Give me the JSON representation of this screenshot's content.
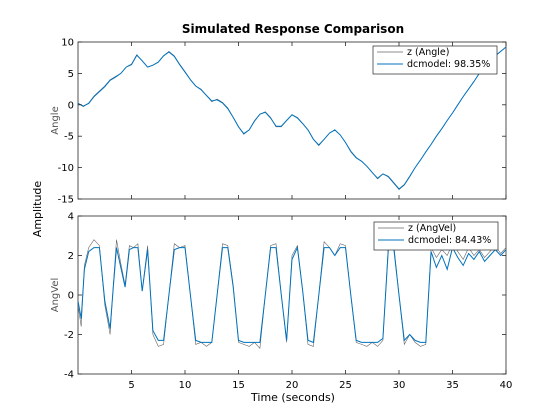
{
  "figure_title": "Simulated Response Comparison",
  "xlabel": "Time (seconds)",
  "ylabel_shared": "Amplitude",
  "colors": {
    "measured": "#666666",
    "model": "#0072BD"
  },
  "chart_data": [
    {
      "type": "line",
      "title": "Simulated Response Comparison",
      "ylabel": "Angle",
      "xlim": [
        0,
        40
      ],
      "ylim": [
        -15,
        10
      ],
      "xticks": [
        5,
        10,
        15,
        20,
        25,
        30,
        35,
        40
      ],
      "xtick_labels_shown": false,
      "yticks": [
        -15,
        -10,
        -5,
        0,
        5,
        10
      ],
      "grid": false,
      "legend_position": "top-right",
      "series": [
        {
          "name": "z (Angle)",
          "color": "#666666",
          "x": [
            0,
            0.5,
            1,
            1.5,
            2,
            2.5,
            3,
            3.5,
            4,
            4.5,
            5,
            5.5,
            6,
            6.5,
            7,
            7.5,
            8,
            8.5,
            9,
            9.5,
            10,
            10.5,
            11,
            11.5,
            12,
            12.5,
            13,
            13.5,
            14,
            14.5,
            15,
            15.5,
            16,
            16.5,
            17,
            17.5,
            18,
            18.5,
            19,
            19.5,
            20,
            20.5,
            21,
            21.5,
            22,
            22.5,
            23,
            23.5,
            24,
            24.5,
            25,
            25.5,
            26,
            26.5,
            27,
            27.5,
            28,
            28.5,
            29,
            29.5,
            30,
            30.5,
            31,
            31.5,
            32,
            32.5,
            33,
            33.5,
            34,
            34.5,
            35,
            35.5,
            36,
            36.5,
            37,
            37.5,
            38,
            38.5,
            39,
            39.5,
            40
          ],
          "y": [
            0.3,
            -0.3,
            0.3,
            1.4,
            2.2,
            3.0,
            4.0,
            4.5,
            5.0,
            6.0,
            6.5,
            8.0,
            7.0,
            6.0,
            6.3,
            6.8,
            7.8,
            8.5,
            7.8,
            6.5,
            5.3,
            4.0,
            3.0,
            2.5,
            1.5,
            0.5,
            0.9,
            0.4,
            -0.5,
            -2.0,
            -3.5,
            -4.7,
            -4.0,
            -2.5,
            -1.5,
            -1.1,
            -2.0,
            -3.5,
            -3.5,
            -2.5,
            -1.6,
            -2.0,
            -3.0,
            -4.0,
            -5.5,
            -6.5,
            -5.5,
            -4.5,
            -4.0,
            -4.8,
            -6.0,
            -7.5,
            -8.5,
            -9.0,
            -9.8,
            -10.8,
            -11.8,
            -11.0,
            -11.5,
            -12.5,
            -13.5,
            -12.8,
            -11.5,
            -10.0,
            -8.8,
            -7.5,
            -6.3,
            -5.0,
            -3.8,
            -2.5,
            -1.3,
            0.0,
            1.3,
            2.5,
            3.7,
            5.0,
            6.2,
            7.0,
            7.8,
            8.5,
            9.2
          ]
        },
        {
          "name": "dcmodel: 98.35%",
          "color": "#0072BD",
          "x": [
            0,
            0.5,
            1,
            1.5,
            2,
            2.5,
            3,
            3.5,
            4,
            4.5,
            5,
            5.5,
            6,
            6.5,
            7,
            7.5,
            8,
            8.5,
            9,
            9.5,
            10,
            10.5,
            11,
            11.5,
            12,
            12.5,
            13,
            13.5,
            14,
            14.5,
            15,
            15.5,
            16,
            16.5,
            17,
            17.5,
            18,
            18.5,
            19,
            19.5,
            20,
            20.5,
            21,
            21.5,
            22,
            22.5,
            23,
            23.5,
            24,
            24.5,
            25,
            25.5,
            26,
            26.5,
            27,
            27.5,
            28,
            28.5,
            29,
            29.5,
            30,
            30.5,
            31,
            31.5,
            32,
            32.5,
            33,
            33.5,
            34,
            34.5,
            35,
            35.5,
            36,
            36.5,
            37,
            37.5,
            38,
            38.5,
            39,
            39.5,
            40
          ],
          "y": [
            0.2,
            -0.2,
            0.2,
            1.3,
            2.1,
            2.9,
            3.9,
            4.4,
            5.0,
            6.0,
            6.4,
            7.9,
            7.0,
            6.0,
            6.3,
            6.8,
            7.8,
            8.4,
            7.7,
            6.4,
            5.2,
            4.0,
            3.0,
            2.4,
            1.5,
            0.6,
            0.8,
            0.3,
            -0.6,
            -2.0,
            -3.5,
            -4.6,
            -4.0,
            -2.6,
            -1.5,
            -1.2,
            -2.1,
            -3.4,
            -3.4,
            -2.5,
            -1.6,
            -2.1,
            -3.0,
            -4.0,
            -5.5,
            -6.4,
            -5.5,
            -4.5,
            -4.0,
            -4.8,
            -6.0,
            -7.4,
            -8.4,
            -9.0,
            -9.8,
            -10.8,
            -11.7,
            -11.0,
            -11.4,
            -12.4,
            -13.4,
            -12.7,
            -11.4,
            -10.0,
            -8.8,
            -7.5,
            -6.3,
            -5.0,
            -3.8,
            -2.5,
            -1.3,
            0.0,
            1.3,
            2.5,
            3.7,
            5.0,
            6.2,
            7.0,
            7.8,
            8.5,
            9.2
          ]
        }
      ]
    },
    {
      "type": "line",
      "title": "",
      "ylabel": "AngVel",
      "xlim": [
        0,
        40
      ],
      "ylim": [
        -4,
        4
      ],
      "xticks": [
        5,
        10,
        15,
        20,
        25,
        30,
        35,
        40
      ],
      "xtick_labels_shown": true,
      "yticks": [
        -4,
        -2,
        0,
        2,
        4
      ],
      "grid": false,
      "legend_position": "top-right",
      "series": [
        {
          "name": "z (AngVel)",
          "color": "#666666",
          "x": [
            0,
            0.3,
            0.6,
            1,
            1.5,
            2,
            2.5,
            3,
            3.3,
            3.6,
            4,
            4.4,
            4.8,
            5.2,
            5.6,
            6,
            6.5,
            7,
            7.5,
            8,
            8.5,
            9,
            9.5,
            10,
            10.5,
            11,
            11.5,
            12,
            12.5,
            13,
            13.5,
            14,
            14.5,
            15,
            15.5,
            16,
            16.5,
            17,
            17.5,
            18,
            18.5,
            19,
            19.5,
            20,
            20.5,
            21,
            21.5,
            22,
            22.5,
            23,
            23.5,
            24,
            24.5,
            25,
            25.5,
            26,
            26.5,
            27,
            27.5,
            28,
            28.5,
            29,
            29.5,
            30,
            30.5,
            31,
            31.5,
            32,
            32.5,
            33,
            33.5,
            34,
            34.5,
            35,
            35.5,
            36,
            36.5,
            37,
            37.5,
            38,
            38.5,
            39,
            39.5,
            40
          ],
          "y": [
            -0.5,
            -1.6,
            1.5,
            2.4,
            2.8,
            2.5,
            -0.5,
            -2.0,
            0.5,
            2.8,
            1.6,
            0.5,
            2.5,
            2.4,
            2.6,
            0.2,
            2.5,
            -2.0,
            -2.6,
            -2.5,
            0.0,
            2.6,
            2.4,
            2.5,
            0.0,
            -2.5,
            -2.4,
            -2.6,
            -2.4,
            0.0,
            2.6,
            2.5,
            0.5,
            -2.4,
            -2.5,
            -2.6,
            -2.4,
            -2.7,
            0.0,
            2.5,
            2.6,
            0.0,
            -2.4,
            2.0,
            2.5,
            0.2,
            -2.5,
            -2.6,
            0.0,
            2.7,
            2.4,
            2.0,
            2.6,
            2.5,
            0.0,
            -2.4,
            -2.5,
            -2.6,
            -2.4,
            -2.6,
            -2.3,
            2.5,
            2.6,
            0.0,
            -2.5,
            -2.0,
            -2.4,
            -2.6,
            -2.5,
            2.4,
            1.9,
            2.3,
            2.0,
            2.6,
            2.2,
            1.8,
            2.4,
            2.0,
            2.3,
            1.9,
            2.2,
            2.5,
            2.1,
            2.4
          ]
        },
        {
          "name": "dcmodel: 84.43%",
          "color": "#0072BD",
          "x": [
            0,
            0.3,
            0.6,
            1,
            1.5,
            2,
            2.5,
            3,
            3.3,
            3.6,
            4,
            4.4,
            4.8,
            5.2,
            5.6,
            6,
            6.5,
            7,
            7.5,
            8,
            8.5,
            9,
            9.5,
            10,
            10.5,
            11,
            11.5,
            12,
            12.5,
            13,
            13.5,
            14,
            14.5,
            15,
            15.5,
            16,
            16.5,
            17,
            17.5,
            18,
            18.5,
            19,
            19.5,
            20,
            20.5,
            21,
            21.5,
            22,
            22.5,
            23,
            23.5,
            24,
            24.5,
            25,
            25.5,
            26,
            26.5,
            27,
            27.5,
            28,
            28.5,
            29,
            29.5,
            30,
            30.5,
            31,
            31.5,
            32,
            32.5,
            33,
            33.5,
            34,
            34.5,
            35,
            35.5,
            36,
            36.5,
            37,
            37.5,
            38,
            38.5,
            39,
            39.5,
            40
          ],
          "y": [
            -0.3,
            -1.2,
            1.3,
            2.2,
            2.4,
            2.4,
            -0.3,
            -1.7,
            0.4,
            2.4,
            1.4,
            0.4,
            2.3,
            2.4,
            2.4,
            0.2,
            2.3,
            -1.8,
            -2.3,
            -2.3,
            0.0,
            2.3,
            2.4,
            2.4,
            0.0,
            -2.3,
            -2.4,
            -2.4,
            -2.4,
            0.0,
            2.4,
            2.4,
            0.4,
            -2.3,
            -2.4,
            -2.4,
            -2.4,
            -2.4,
            0.0,
            2.4,
            2.4,
            0.0,
            -2.3,
            1.8,
            2.4,
            0.2,
            -2.3,
            -2.4,
            0.0,
            2.4,
            2.4,
            2.0,
            2.4,
            2.4,
            0.0,
            -2.3,
            -2.4,
            -2.4,
            -2.4,
            -2.4,
            -2.2,
            2.3,
            2.4,
            0.0,
            -2.3,
            -2.0,
            -2.3,
            -2.4,
            -2.4,
            2.2,
            1.4,
            2.0,
            1.3,
            2.4,
            1.9,
            1.5,
            2.1,
            1.8,
            2.2,
            1.7,
            2.0,
            2.3,
            2.0,
            2.3
          ]
        }
      ]
    }
  ]
}
